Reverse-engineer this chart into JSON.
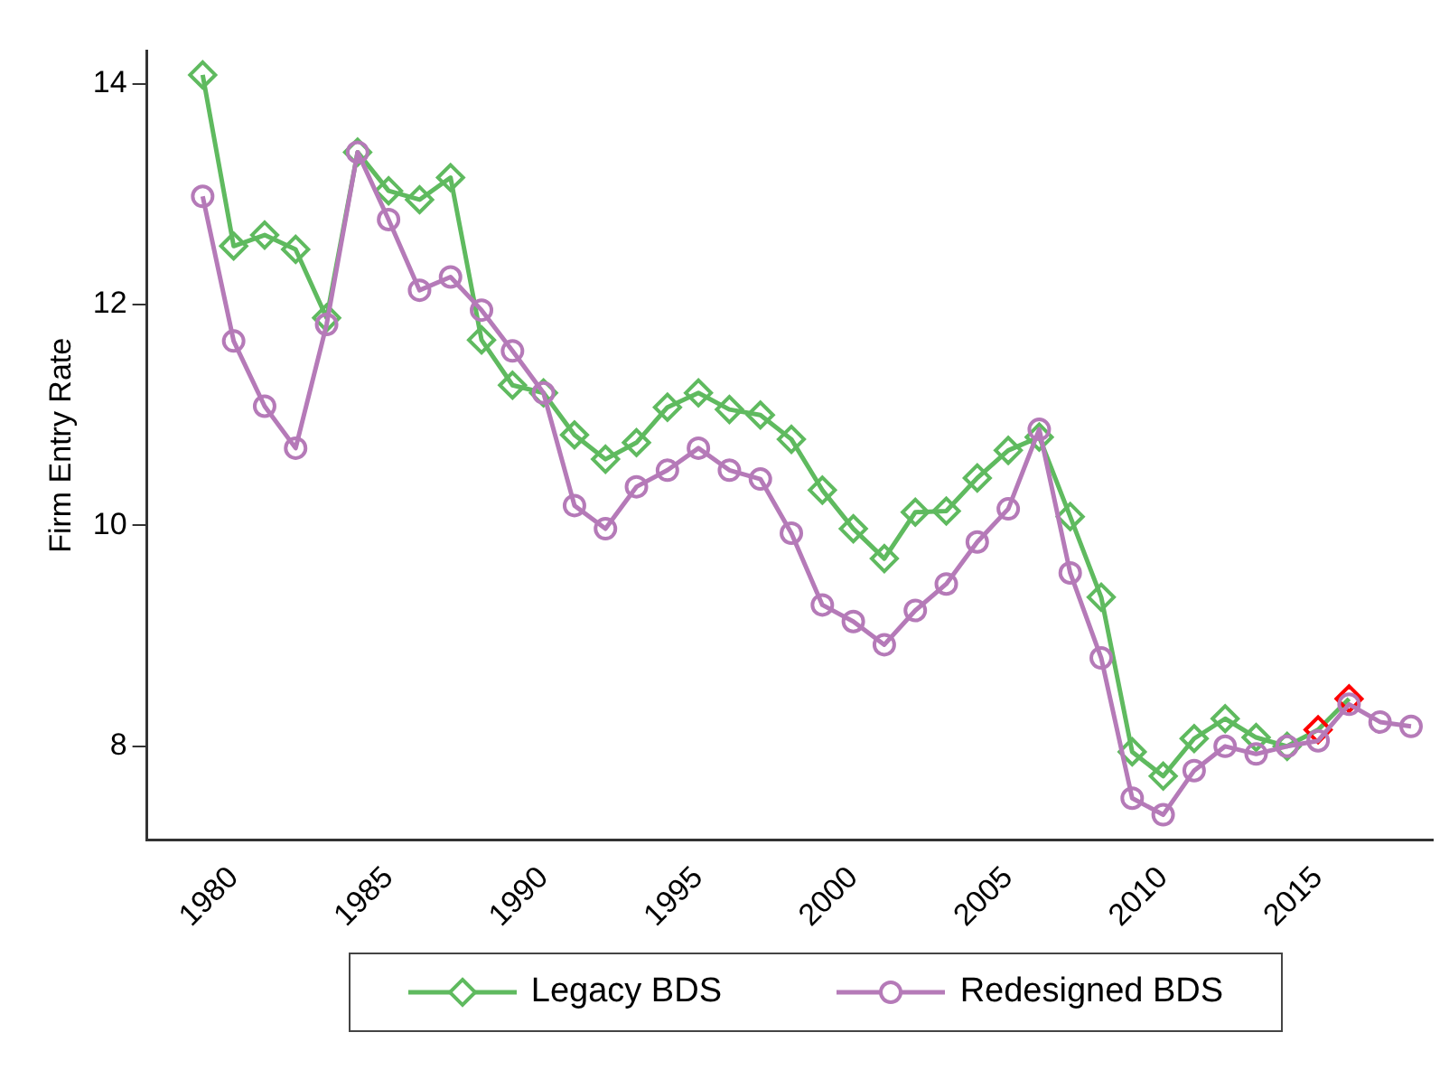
{
  "chart_data": {
    "type": "line",
    "ylabel": "Firm Entry Rate",
    "x": [
      1979,
      1980,
      1981,
      1982,
      1983,
      1984,
      1985,
      1986,
      1987,
      1988,
      1989,
      1990,
      1991,
      1992,
      1993,
      1994,
      1995,
      1996,
      1997,
      1998,
      1999,
      2000,
      2001,
      2002,
      2003,
      2004,
      2005,
      2006,
      2007,
      2008,
      2009,
      2010,
      2011,
      2012,
      2013,
      2014,
      2015,
      2016,
      2017,
      2018
    ],
    "series": [
      {
        "name": "Legacy BDS",
        "color": "#5fba5f",
        "marker": "diamond",
        "values": [
          14.08,
          12.53,
          12.63,
          12.5,
          11.88,
          13.38,
          13.03,
          12.95,
          13.15,
          11.68,
          11.27,
          11.2,
          10.82,
          10.6,
          10.75,
          11.07,
          11.2,
          11.05,
          11.0,
          10.78,
          10.32,
          9.97,
          9.7,
          10.12,
          10.13,
          10.43,
          10.68,
          10.8,
          10.08,
          9.35,
          7.95,
          7.73,
          8.07,
          8.25,
          8.08,
          8.0,
          8.15,
          8.43,
          null,
          null
        ],
        "colors": [
          "#5fba5f",
          "#5fba5f",
          "#5fba5f",
          "#5fba5f",
          "#5fba5f",
          "#5fba5f",
          "#5fba5f",
          "#5fba5f",
          "#5fba5f",
          "#5fba5f",
          "#5fba5f",
          "#5fba5f",
          "#5fba5f",
          "#5fba5f",
          "#5fba5f",
          "#5fba5f",
          "#5fba5f",
          "#5fba5f",
          "#5fba5f",
          "#5fba5f",
          "#5fba5f",
          "#5fba5f",
          "#5fba5f",
          "#5fba5f",
          "#5fba5f",
          "#5fba5f",
          "#5fba5f",
          "#5fba5f",
          "#5fba5f",
          "#5fba5f",
          "#5fba5f",
          "#5fba5f",
          "#5fba5f",
          "#5fba5f",
          "#5fba5f",
          "#5fba5f",
          "#ff0000",
          "#ff0000",
          null,
          null
        ]
      },
      {
        "name": "Redesigned BDS",
        "color": "#b57ab8",
        "marker": "circle",
        "values": [
          12.98,
          11.67,
          11.08,
          10.7,
          11.82,
          13.38,
          12.77,
          12.13,
          12.25,
          11.95,
          11.58,
          11.2,
          10.18,
          9.97,
          10.35,
          10.5,
          10.7,
          10.5,
          10.42,
          9.93,
          9.28,
          9.13,
          8.92,
          9.23,
          9.47,
          9.85,
          10.15,
          10.87,
          9.57,
          8.8,
          7.53,
          7.38,
          7.78,
          8.0,
          7.93,
          8.0,
          8.05,
          8.38,
          8.22,
          8.18
        ]
      }
    ],
    "xlim": [
      1977.2,
      2018.7
    ],
    "xticks": [
      1980,
      1985,
      1990,
      1995,
      2000,
      2005,
      2010,
      2015
    ],
    "ylim": [
      7.15,
      14.3
    ],
    "yticks": [
      8,
      10,
      12,
      14
    ],
    "grid": false,
    "legend": "bottom",
    "line_style": "solid"
  }
}
